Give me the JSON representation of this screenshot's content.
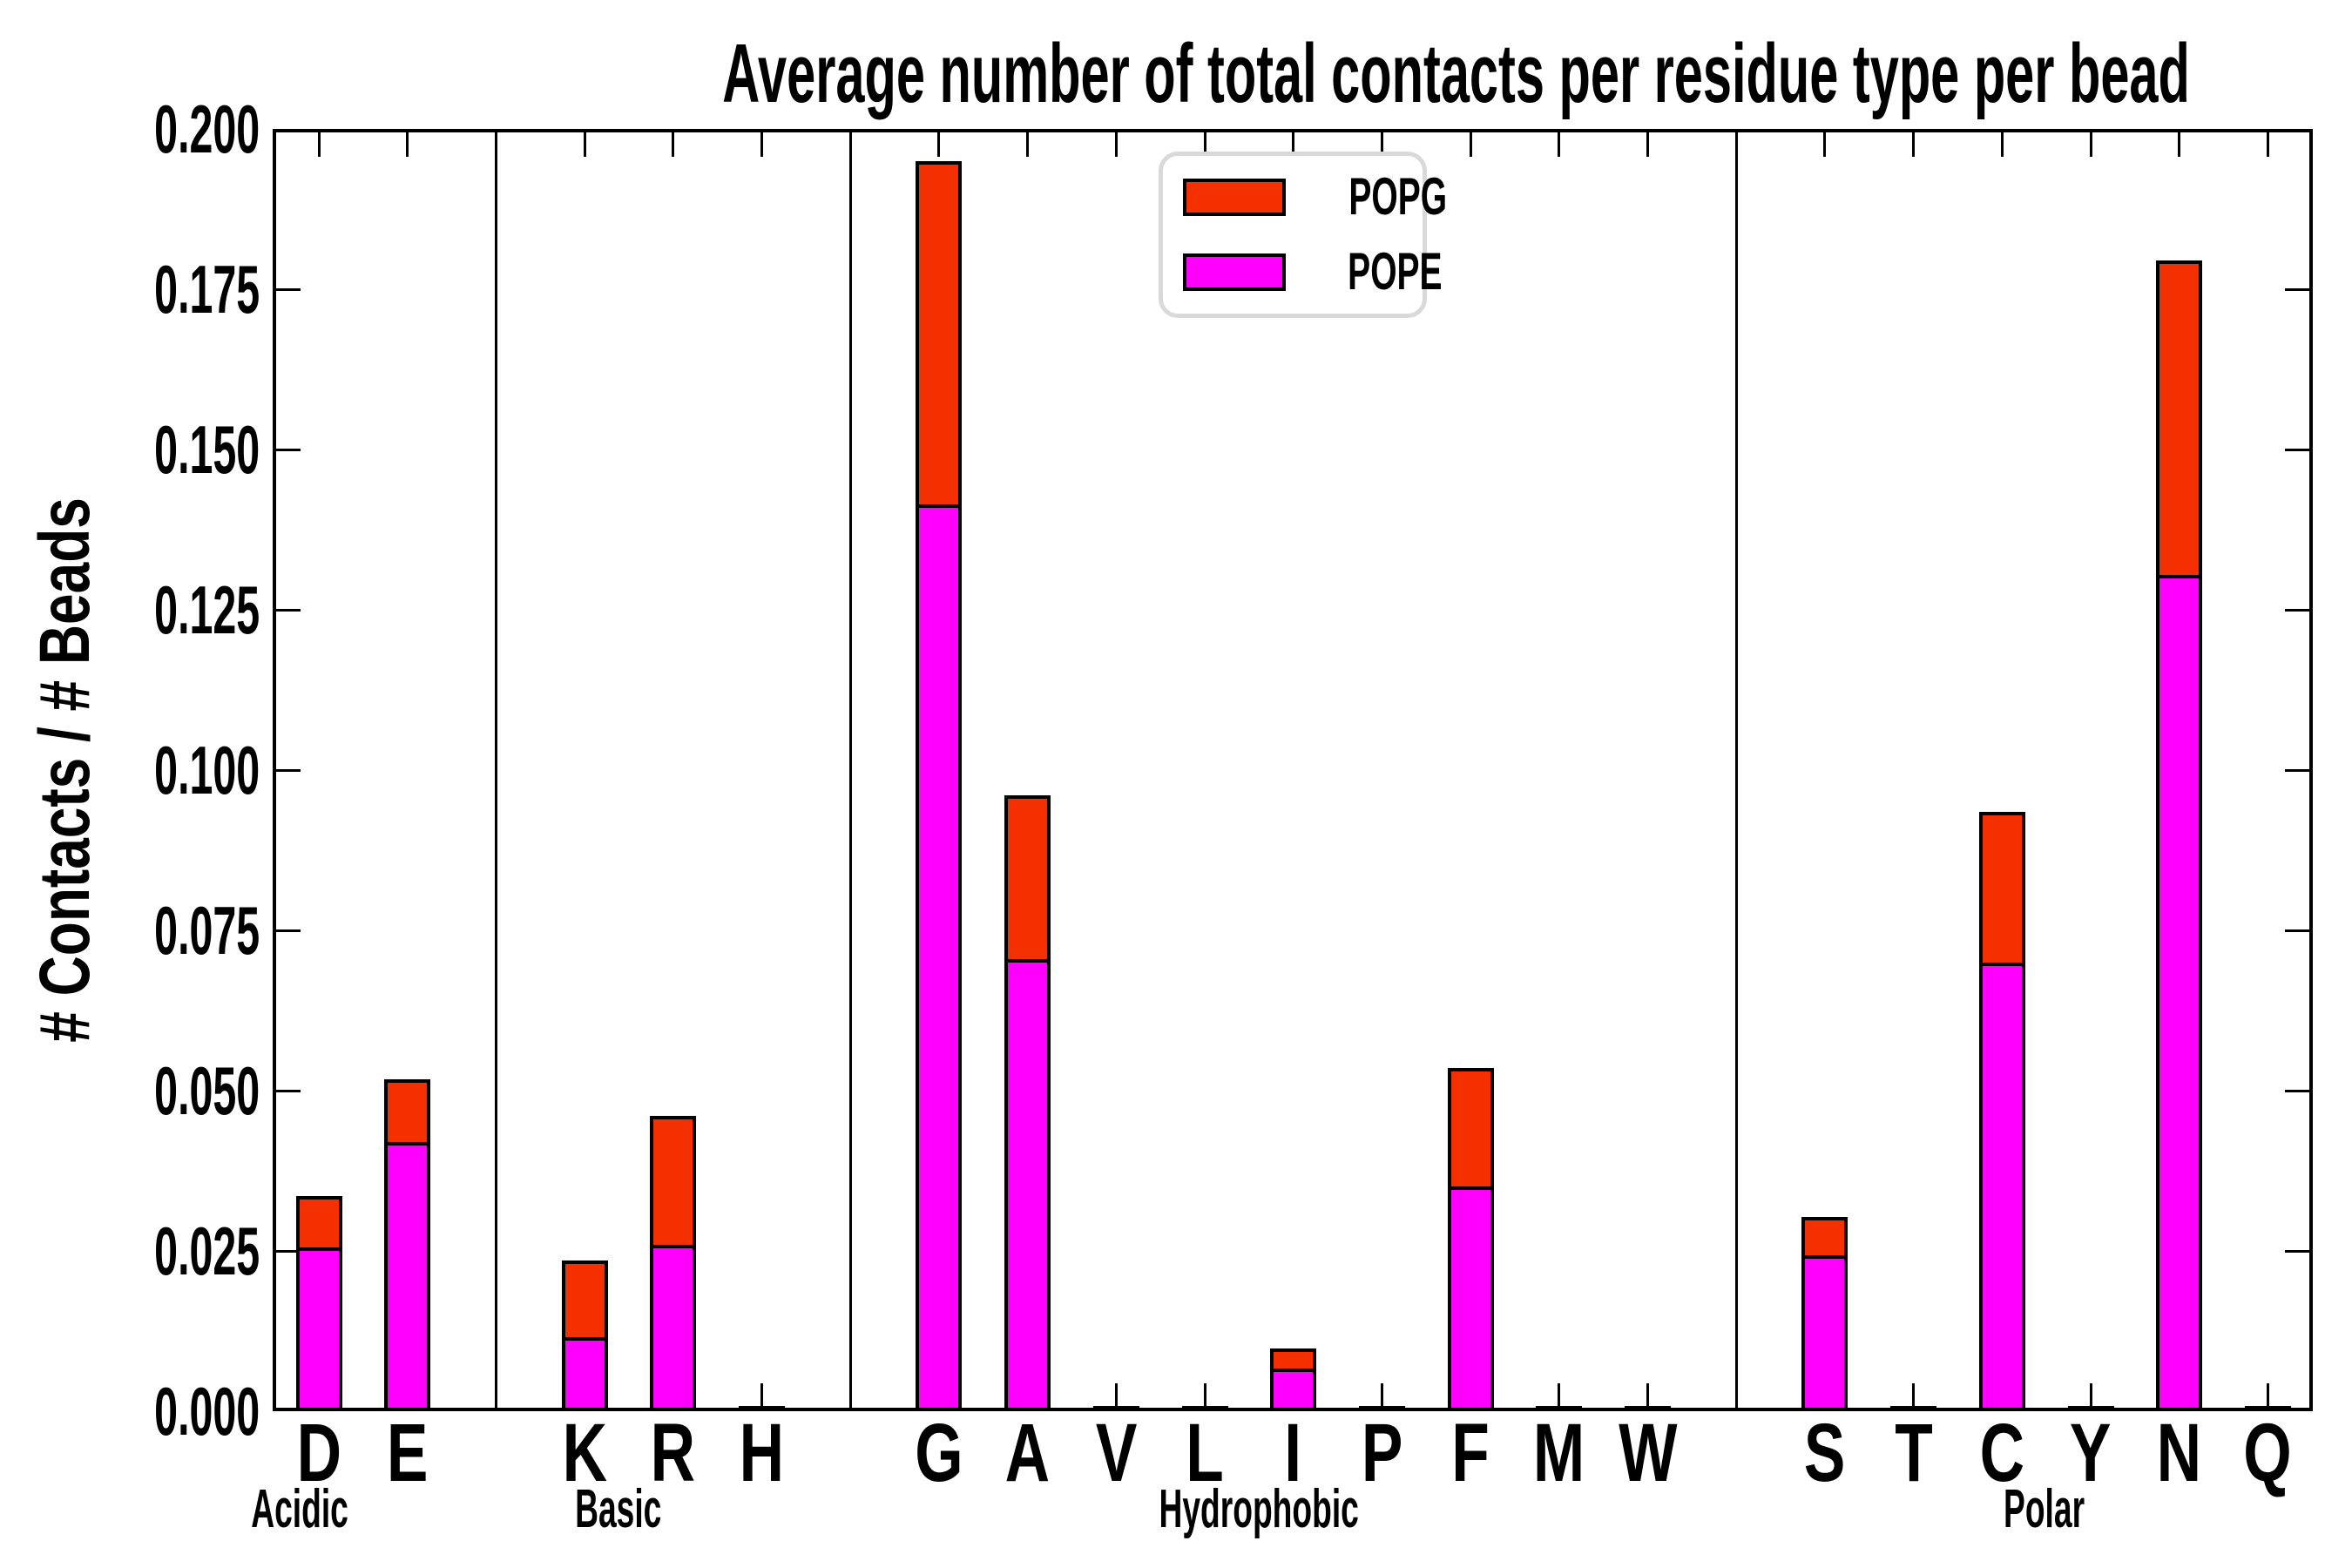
{
  "figure": {
    "title": "Average number of total contacts per residue type per bead",
    "ylabel": "# Contacts / # Beads"
  },
  "legend": {
    "items": [
      {
        "label": "POPG",
        "color": "#f53000"
      },
      {
        "label": "POPE",
        "color": "#ff00ff"
      }
    ]
  },
  "y_axis": {
    "min": 0.0,
    "max": 0.2,
    "step": 0.025,
    "tick_labels": [
      "0.000",
      "0.025",
      "0.050",
      "0.075",
      "0.100",
      "0.125",
      "0.150",
      "0.175",
      "0.200"
    ]
  },
  "chart_data": {
    "type": "bar",
    "stacked": true,
    "title": "Average number of total contacts per residue type per bead",
    "xlabel": "",
    "ylabel": "# Contacts / # Beads",
    "ylim": [
      0.0,
      0.2
    ],
    "grid": false,
    "legend_position": "upper center",
    "categories": [
      "D",
      "E",
      "K",
      "R",
      "H",
      "G",
      "A",
      "V",
      "L",
      "I",
      "P",
      "F",
      "M",
      "W",
      "S",
      "T",
      "C",
      "Y",
      "N",
      "Q"
    ],
    "groups": [
      {
        "name": "Acidic",
        "residues": [
          "D",
          "E"
        ]
      },
      {
        "name": "Basic",
        "residues": [
          "K",
          "R",
          "H"
        ]
      },
      {
        "name": "Hydrophobic",
        "residues": [
          "G",
          "A",
          "V",
          "L",
          "I",
          "P",
          "F",
          "M",
          "W"
        ]
      },
      {
        "name": "Polar",
        "residues": [
          "S",
          "T",
          "C",
          "Y",
          "N",
          "Q"
        ]
      }
    ],
    "series": [
      {
        "name": "POPE",
        "color": "#ff00ff",
        "values": [
          0.0255,
          0.042,
          0.0115,
          0.026,
          0.0,
          0.1415,
          0.0705,
          0.0,
          0.0,
          0.0066,
          0.0,
          0.035,
          0.0,
          0.0,
          0.0243,
          0.0,
          0.07,
          0.0,
          0.1305,
          0.0
        ]
      },
      {
        "name": "POPG",
        "color": "#f53000",
        "values": [
          0.008,
          0.0098,
          0.012,
          0.02,
          0.0,
          0.0535,
          0.0255,
          0.0,
          0.0,
          0.0032,
          0.0,
          0.0185,
          0.0,
          0.0,
          0.006,
          0.0,
          0.0235,
          0.0,
          0.049,
          0.0
        ]
      }
    ],
    "totals": [
      0.0335,
      0.0518,
      0.0235,
      0.046,
      0.0,
      0.195,
      0.096,
      0.0,
      0.0,
      0.0098,
      0.0,
      0.0535,
      0.0,
      0.0,
      0.0303,
      0.0,
      0.0935,
      0.0,
      0.1795,
      0.0
    ]
  }
}
